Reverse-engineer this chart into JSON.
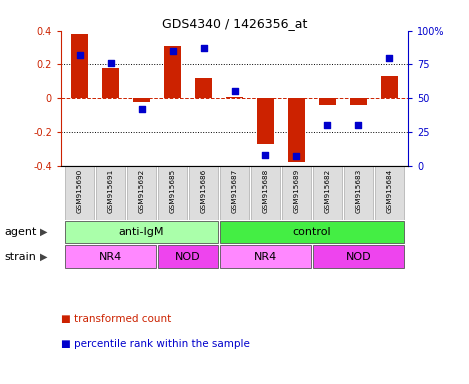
{
  "title": "GDS4340 / 1426356_at",
  "samples": [
    "GSM915690",
    "GSM915691",
    "GSM915692",
    "GSM915685",
    "GSM915686",
    "GSM915687",
    "GSM915688",
    "GSM915689",
    "GSM915682",
    "GSM915683",
    "GSM915684"
  ],
  "transformed_count": [
    0.38,
    0.18,
    -0.02,
    0.31,
    0.12,
    0.005,
    -0.27,
    -0.38,
    -0.04,
    -0.04,
    0.13
  ],
  "percentile_rank": [
    82,
    76,
    42,
    85,
    87,
    55,
    8,
    7,
    30,
    30,
    80
  ],
  "bar_color": "#cc2200",
  "dot_color": "#0000cc",
  "ylim": [
    -0.4,
    0.4
  ],
  "yticks_left": [
    -0.4,
    -0.2,
    0.0,
    0.2,
    0.4
  ],
  "yticks_left_labels": [
    "-0.4",
    "-0.2",
    "0",
    "0.2",
    "0.4"
  ],
  "right_yticks_pct": [
    0,
    25,
    50,
    75,
    100
  ],
  "right_yticklabels": [
    "0",
    "25",
    "50",
    "75",
    "100%"
  ],
  "hline_dashed_color": "#cc2200",
  "dotted_line_color": "black",
  "agent_labels": [
    {
      "label": "anti-IgM",
      "start": 0,
      "end": 5,
      "color": "#aaffaa"
    },
    {
      "label": "control",
      "start": 5,
      "end": 11,
      "color": "#44ee44"
    }
  ],
  "strain_labels": [
    {
      "label": "NR4",
      "start": 0,
      "end": 3,
      "color": "#ff88ff"
    },
    {
      "label": "NOD",
      "start": 3,
      "end": 5,
      "color": "#ee44ee"
    },
    {
      "label": "NR4",
      "start": 5,
      "end": 8,
      "color": "#ff88ff"
    },
    {
      "label": "NOD",
      "start": 8,
      "end": 11,
      "color": "#ee44ee"
    }
  ],
  "legend_items": [
    {
      "label": "transformed count",
      "color": "#cc2200"
    },
    {
      "label": "percentile rank within the sample",
      "color": "#0000cc"
    }
  ],
  "background_color": "#ffffff",
  "ylabel_left_color": "#cc2200",
  "ylabel_right_color": "#0000cc",
  "sample_box_color": "#dddddd",
  "sample_box_edge": "#aaaaaa"
}
